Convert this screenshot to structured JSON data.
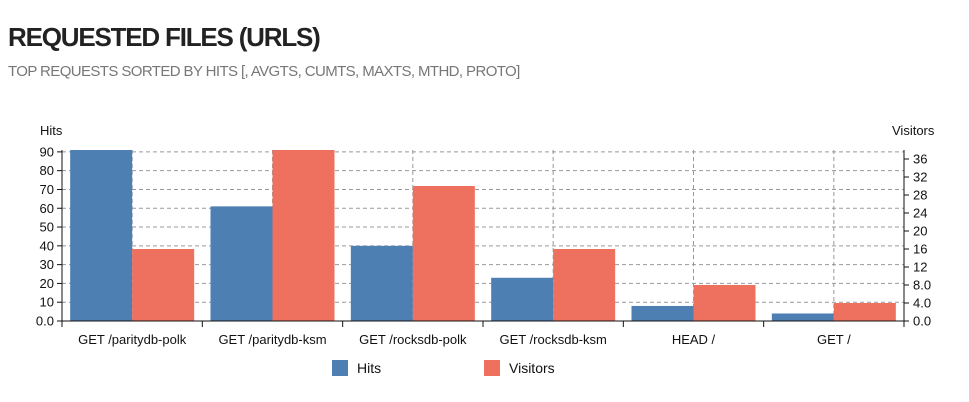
{
  "panel": {
    "title": "REQUESTED FILES (URLS)",
    "subtitle": "TOP REQUESTS SORTED BY HITS [, AVGTS, CUMTS, MAXTS, MTHD, PROTO]"
  },
  "chart_data": {
    "type": "bar",
    "title": "REQUESTED FILES (URLS)",
    "categories": [
      "GET /paritydb-polk",
      "GET /paritydb-ksm",
      "GET /rocksdb-polk",
      "GET /rocksdb-ksm",
      "HEAD /",
      "GET /"
    ],
    "series": [
      {
        "name": "Hits",
        "axis": "left",
        "color": "#4e7fb3",
        "values": [
          91,
          61,
          40,
          23,
          8,
          4
        ]
      },
      {
        "name": "Visitors",
        "axis": "right",
        "color": "#ee7160",
        "values": [
          16,
          38,
          30,
          16,
          8,
          4
        ]
      }
    ],
    "ylabel_left": "Hits",
    "ylabel_right": "Visitors",
    "ylim_left": [
      0,
      91
    ],
    "ylim_right": [
      0,
      38
    ],
    "yticks_left": [
      "0.0",
      "10",
      "20",
      "30",
      "40",
      "50",
      "60",
      "70",
      "80",
      "90"
    ],
    "yticks_right": [
      "0.0",
      "4.0",
      "8.0",
      "12",
      "16",
      "20",
      "24",
      "28",
      "32",
      "36"
    ],
    "grid": true,
    "legend": "bottom-center"
  }
}
